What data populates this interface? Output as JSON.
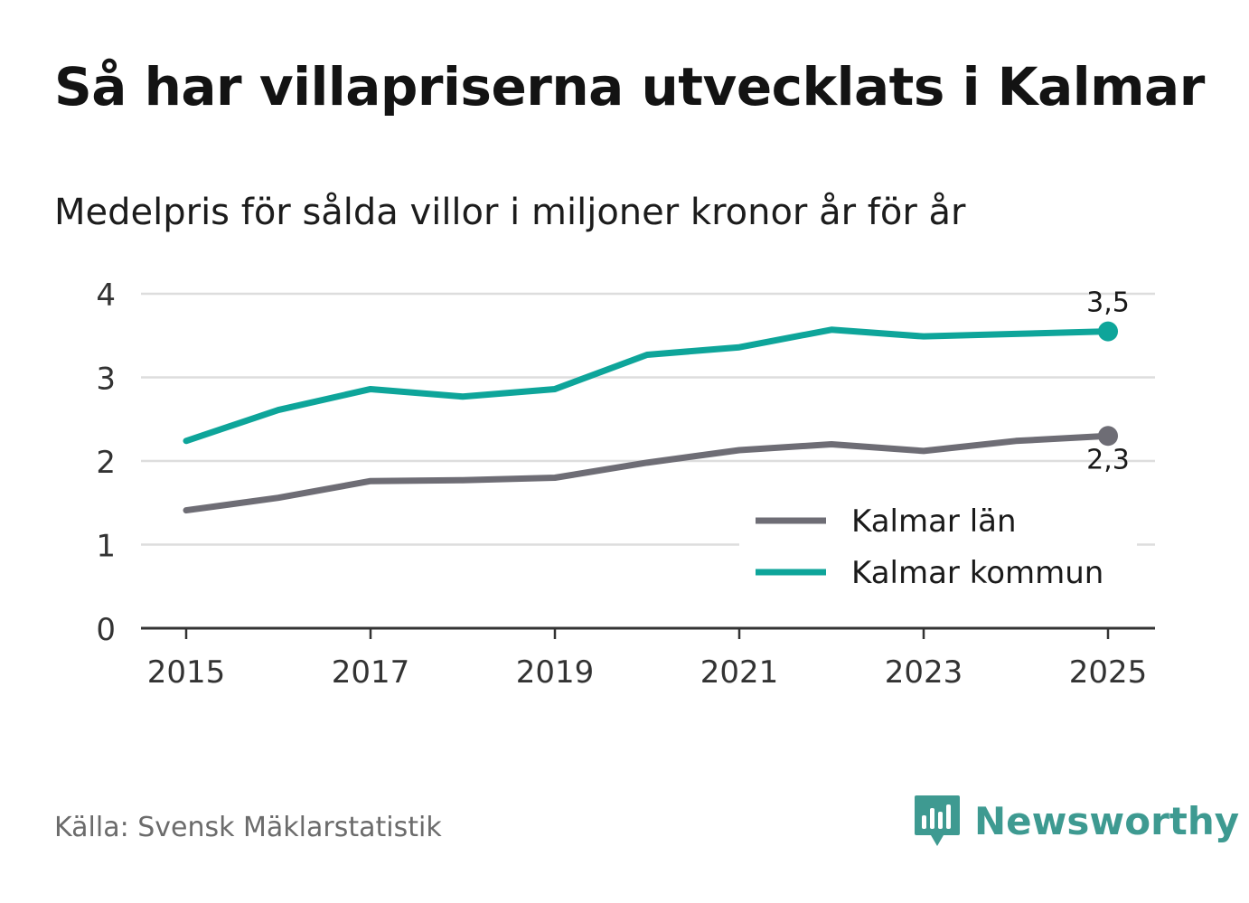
{
  "title": "Så har villapriserna utvecklats i Kalmar",
  "subtitle": "Medelpris för sålda villor i miljoner kronor år för år",
  "source": "Källa: Svensk Mäklarstatistik",
  "brand": {
    "name": "Newsworthy",
    "logo_icon": "bar-chart-speech-bubble-icon",
    "color": "#3e9a91"
  },
  "chart_data": {
    "type": "line",
    "x": [
      2015,
      2016,
      2017,
      2018,
      2019,
      2020,
      2021,
      2022,
      2023,
      2024,
      2025
    ],
    "xticks": [
      "2015",
      "2017",
      "2019",
      "2021",
      "2023",
      "2025"
    ],
    "yticks": [
      "0",
      "1",
      "2",
      "3",
      "4"
    ],
    "ylim": [
      0,
      4
    ],
    "xlim": [
      2015,
      2025
    ],
    "grid": true,
    "legend_position": "bottom-right",
    "series": [
      {
        "name": "Kalmar län",
        "color": "#6e6d75",
        "values": [
          1.41,
          1.56,
          1.76,
          1.77,
          1.8,
          1.98,
          2.13,
          2.2,
          2.12,
          2.24,
          2.3
        ],
        "end_label": "2,3"
      },
      {
        "name": "Kalmar kommun",
        "color": "#0ea59a",
        "values": [
          2.24,
          2.61,
          2.86,
          2.77,
          2.86,
          3.27,
          3.36,
          3.57,
          3.49,
          3.52,
          3.55
        ],
        "end_label": "3,5"
      }
    ]
  }
}
